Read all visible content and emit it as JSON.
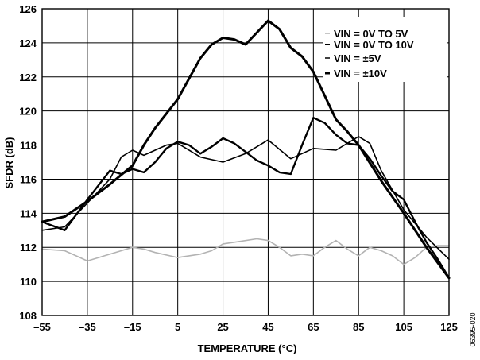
{
  "chart_data": {
    "type": "line",
    "xlabel": "TEMPERATURE (°C)",
    "ylabel": "SFDR (dB)",
    "xlim": [
      -55,
      125
    ],
    "ylim": [
      108,
      126
    ],
    "x_ticks": [
      -55,
      -35,
      -15,
      5,
      25,
      45,
      65,
      85,
      105,
      125
    ],
    "x_tick_labels": [
      "–55",
      "–35",
      "–15",
      "5",
      "25",
      "45",
      "65",
      "85",
      "105",
      "125"
    ],
    "y_ticks": [
      108,
      110,
      112,
      114,
      116,
      118,
      120,
      122,
      124,
      126
    ],
    "grid": true,
    "legend_placement": "top-right",
    "figure_id": "06395-020",
    "series": [
      {
        "name": "VIN = 0V TO 5V",
        "color": "#b3b3b3",
        "x": [
          -55,
          -45,
          -40,
          -35,
          -30,
          -20,
          -15,
          -10,
          -5,
          5,
          15,
          20,
          25,
          30,
          40,
          45,
          50,
          55,
          60,
          65,
          70,
          75,
          80,
          85,
          90,
          95,
          100,
          105,
          110,
          115,
          120,
          125
        ],
        "values": [
          111.9,
          111.8,
          111.5,
          111.2,
          111.4,
          111.8,
          112.0,
          111.9,
          111.7,
          111.4,
          111.6,
          111.8,
          112.2,
          112.3,
          112.5,
          112.4,
          112.0,
          111.5,
          111.6,
          111.5,
          112.0,
          112.4,
          111.9,
          111.5,
          112.0,
          111.8,
          111.5,
          111.0,
          111.4,
          112.0,
          112.1,
          112.1
        ]
      },
      {
        "name": "VIN = 0V TO 10V",
        "color": "#000000",
        "x": [
          -55,
          -45,
          -35,
          -25,
          -20,
          -15,
          -10,
          -5,
          0,
          5,
          10,
          15,
          20,
          25,
          30,
          35,
          40,
          45,
          50,
          55,
          60,
          65,
          70,
          75,
          80,
          85,
          90,
          95,
          100,
          105,
          110,
          115,
          120,
          125
        ],
        "values": [
          113.5,
          113.0,
          114.8,
          116.5,
          116.3,
          116.6,
          116.4,
          117.0,
          117.8,
          118.2,
          118.0,
          117.5,
          117.9,
          118.4,
          118.1,
          117.6,
          117.1,
          116.8,
          116.4,
          116.3,
          118.0,
          119.6,
          119.3,
          118.6,
          118.1,
          118.0,
          117.2,
          116.2,
          115.3,
          114.8,
          113.5,
          112.3,
          111.3,
          110.2
        ]
      },
      {
        "name": "VIN = ±5V",
        "color": "#000000",
        "x": [
          -55,
          -45,
          -35,
          -25,
          -20,
          -15,
          -10,
          -5,
          0,
          5,
          15,
          25,
          35,
          45,
          55,
          60,
          65,
          75,
          85,
          90,
          95,
          105,
          115,
          125
        ],
        "values": [
          113.0,
          113.2,
          114.6,
          116.0,
          117.3,
          117.7,
          117.4,
          117.7,
          118.0,
          118.1,
          117.3,
          117.0,
          117.5,
          118.3,
          117.2,
          117.5,
          117.8,
          117.7,
          118.5,
          118.1,
          116.5,
          114.2,
          112.6,
          111.3
        ]
      },
      {
        "name": "VIN = ±10V",
        "color": "#000000",
        "x": [
          -55,
          -45,
          -35,
          -25,
          -15,
          -10,
          -5,
          5,
          10,
          15,
          20,
          25,
          30,
          35,
          40,
          45,
          50,
          55,
          60,
          65,
          70,
          75,
          80,
          85,
          95,
          105,
          115,
          125
        ],
        "values": [
          113.5,
          113.8,
          114.7,
          115.7,
          116.8,
          118.0,
          119.0,
          120.7,
          121.9,
          123.1,
          123.9,
          124.3,
          124.2,
          123.9,
          124.6,
          125.3,
          124.8,
          123.7,
          123.2,
          122.3,
          120.9,
          119.5,
          118.8,
          118.0,
          115.9,
          114.0,
          112.0,
          110.2
        ]
      }
    ]
  }
}
